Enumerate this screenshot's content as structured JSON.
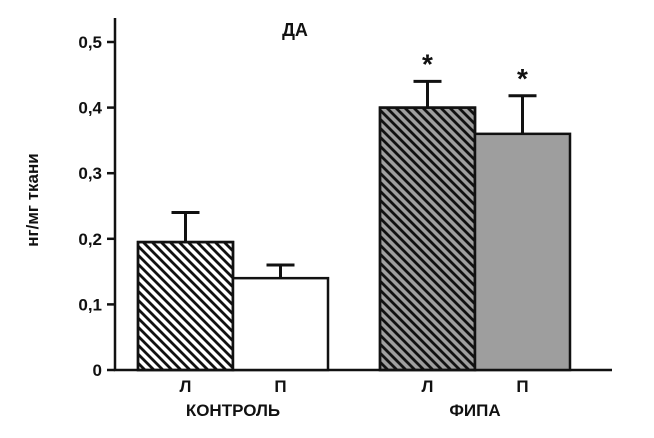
{
  "chart_data": {
    "type": "bar",
    "title": "ДА",
    "ylabel": "нг/мг ткани",
    "xlabel": "",
    "ylim": [
      0,
      0.5
    ],
    "yticks": [
      0,
      0.1,
      0.2,
      0.3,
      0.4,
      0.5
    ],
    "ytick_labels": [
      "0",
      "0,1",
      "0,2",
      "0,3",
      "0,4",
      "0,5"
    ],
    "grid": false,
    "legend": false,
    "groups": [
      {
        "label": "КОНТРОЛЬ",
        "bars": [
          {
            "label": "Л",
            "value": 0.195,
            "error": 0.045,
            "fill": "#ffffff",
            "hatch": true,
            "annotation": ""
          },
          {
            "label": "П",
            "value": 0.14,
            "error": 0.02,
            "fill": "#ffffff",
            "hatch": false,
            "annotation": ""
          }
        ]
      },
      {
        "label": "ФИПА",
        "bars": [
          {
            "label": "Л",
            "value": 0.4,
            "error": 0.04,
            "fill": "#9e9e9e",
            "hatch": true,
            "annotation": "*"
          },
          {
            "label": "П",
            "value": 0.36,
            "error": 0.058,
            "fill": "#9e9e9e",
            "hatch": false,
            "annotation": "*"
          }
        ]
      }
    ],
    "colors": {
      "axis": "#111111",
      "bar_stroke": "#111111",
      "hatch_line": "#111111",
      "text": "#111111",
      "gray_fill": "#9e9e9e"
    }
  }
}
